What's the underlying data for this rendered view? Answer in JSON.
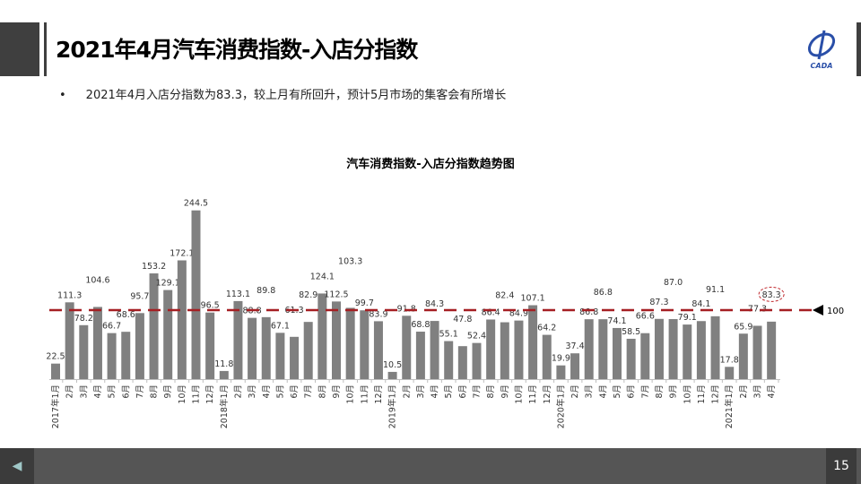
{
  "header": {
    "title": "2021年4月汽车消费指数-入店分指数",
    "logo_text": "CADA"
  },
  "bullet": {
    "text": "2021年4月入店分指数为83.3，较上月有所回升，预计5月市场的集客会有所增长"
  },
  "footer": {
    "page": "15",
    "prev_icon": "triangle-left-icon"
  },
  "chart_data": {
    "type": "bar",
    "title": "汽车消费指数-入店分指数趋势图",
    "bar_color": "#808080",
    "reference_line": {
      "value": 100,
      "label": "100",
      "color": "#a51f23",
      "style": "dashed"
    },
    "highlight": {
      "index": 51,
      "label": "83.3"
    },
    "ylim": [
      0,
      250
    ],
    "grid": false,
    "categories": [
      "2017年1月",
      "2月",
      "3月",
      "4月",
      "5月",
      "6月",
      "7月",
      "8月",
      "9月",
      "10月",
      "11月",
      "12月",
      "2018年1月",
      "2月",
      "3月",
      "4月",
      "5月",
      "6月",
      "7月",
      "8月",
      "9月",
      "10月",
      "11月",
      "12月",
      "2019年1月",
      "2月",
      "3月",
      "4月",
      "5月",
      "6月",
      "7月",
      "8月",
      "9月",
      "10月",
      "11月",
      "12月",
      "2020年1月",
      "2月",
      "3月",
      "4月",
      "5月",
      "6月",
      "7月",
      "8月",
      "9月",
      "10月",
      "11月",
      "12月",
      "2021年1月",
      "2月",
      "3月",
      "4月"
    ],
    "values": [
      22.5,
      111.3,
      78.2,
      104.6,
      66.7,
      68.6,
      95.7,
      153.2,
      129.1,
      172.1,
      244.5,
      96.5,
      11.8,
      113.1,
      88.8,
      89.8,
      67.1,
      61.3,
      82.9,
      124.1,
      112.5,
      103.3,
      99.7,
      83.9,
      10.5,
      91.8,
      68.8,
      84.3,
      55.1,
      47.8,
      52.4,
      86.4,
      82.4,
      84.9,
      107.1,
      64.2,
      19.9,
      37.4,
      86.8,
      86.8,
      74.1,
      58.5,
      66.6,
      87.3,
      87.0,
      79.1,
      84.1,
      91.1,
      17.8,
      65.9,
      77.3,
      83.3
    ]
  }
}
